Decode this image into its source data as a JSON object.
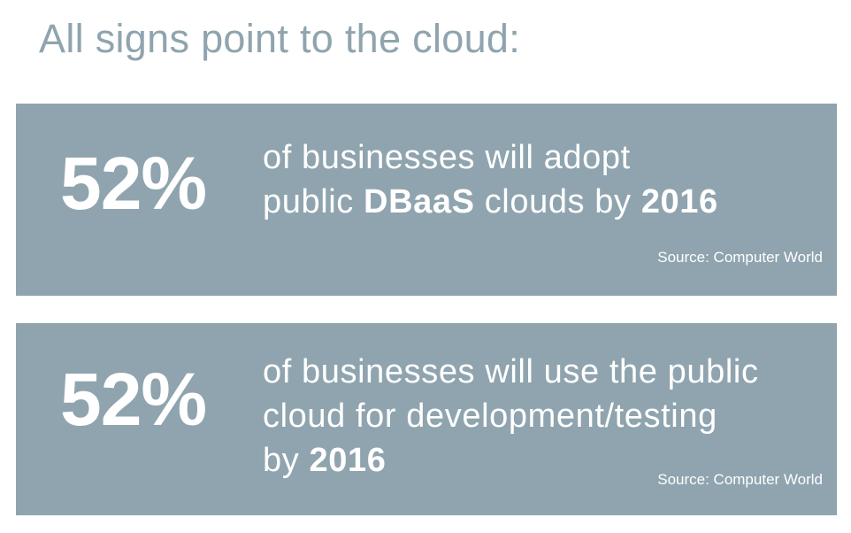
{
  "headline": "All signs point to the cloud:",
  "cards": [
    {
      "stat": "52%",
      "line1": "of businesses will adopt",
      "line2_pre": "public ",
      "line2_bold1": "DBaaS",
      "line2_mid": " clouds by ",
      "line2_bold2": "2016",
      "source": "Source: Computer World"
    },
    {
      "stat": "52%",
      "line1": "of businesses will use the public",
      "line2": "cloud for development/testing",
      "line3_pre": "by ",
      "line3_bold": "2016",
      "source": "Source: Computer World"
    }
  ],
  "colors": {
    "card_background": "#8fa4ae",
    "headline_text": "#8fa4ae",
    "card_text": "#ffffff"
  }
}
